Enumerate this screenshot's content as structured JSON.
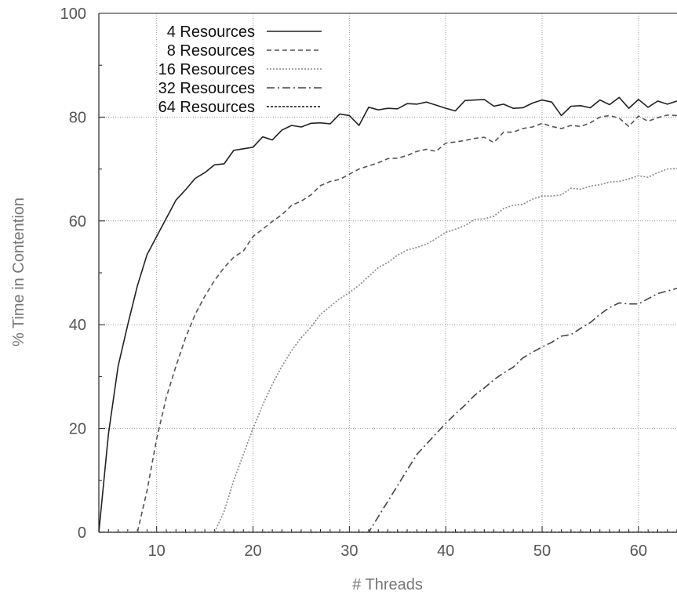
{
  "chart_data": {
    "type": "line",
    "title": "",
    "xlabel": "# Threads",
    "ylabel": "% Time in Contention",
    "xlim": [
      4,
      64
    ],
    "ylim": [
      0,
      100
    ],
    "xticks": [
      10,
      20,
      30,
      40,
      50,
      60
    ],
    "yticks": [
      0,
      20,
      40,
      60,
      80,
      100
    ],
    "grid": true,
    "legend_position": "top-left",
    "x": [
      4,
      5,
      6,
      7,
      8,
      9,
      10,
      11,
      12,
      13,
      14,
      15,
      16,
      17,
      18,
      19,
      20,
      21,
      22,
      23,
      24,
      25,
      26,
      27,
      28,
      29,
      30,
      31,
      32,
      33,
      34,
      35,
      36,
      37,
      38,
      39,
      40,
      41,
      42,
      43,
      44,
      45,
      46,
      47,
      48,
      49,
      50,
      51,
      52,
      53,
      54,
      55,
      56,
      57,
      58,
      59,
      60,
      61,
      62,
      63,
      64
    ],
    "series": [
      {
        "name": "4 Resources",
        "values": [
          0,
          19,
          32,
          40,
          47.5,
          53.5,
          57,
          60.5,
          64,
          66,
          68.2,
          69.3,
          70.8,
          71,
          73.6,
          73.9,
          74.2,
          76.2,
          75.6,
          77.5,
          78.4,
          78.1,
          78.8,
          78.9,
          78.7,
          80.6,
          80.3,
          78.4,
          81.9,
          81.4,
          81.7,
          81.6,
          82.6,
          82.5,
          82.9,
          82.3,
          81.7,
          81.2,
          83.2,
          83.3,
          83.4,
          82.1,
          82.5,
          81.7,
          81.8,
          82.7,
          83.3,
          82.9,
          80.3,
          82.1,
          82.2,
          81.8,
          83.3,
          82.4,
          83.8,
          81.7,
          83.4,
          81.9,
          83.1,
          82.5,
          83.1
        ],
        "dash": "",
        "color": "#222222"
      },
      {
        "name": "8 Resources",
        "values": [
          0,
          0,
          0,
          0,
          0,
          8,
          18,
          26,
          32,
          37.5,
          42,
          45.5,
          48.5,
          51,
          53,
          54.2,
          57,
          58.4,
          59.9,
          61.2,
          63,
          63.8,
          65,
          66.8,
          67.6,
          68,
          69,
          70,
          70.6,
          71.2,
          72,
          72.1,
          72.6,
          73.4,
          73.8,
          73.4,
          75,
          75.2,
          75.5,
          75.9,
          76.1,
          75.1,
          77.1,
          77.1,
          77.8,
          78.1,
          78.8,
          78.2,
          77.8,
          78.4,
          78.2,
          78.9,
          80,
          80.3,
          79.8,
          78.2,
          80.2,
          79.2,
          79.9,
          80.4,
          80.3
        ],
        "dash": "6,4",
        "color": "#555555"
      },
      {
        "name": "16 Resources",
        "values": [
          0,
          0,
          0,
          0,
          0,
          0,
          0,
          0,
          0,
          0,
          0,
          0,
          0,
          4,
          10,
          15,
          20,
          24.5,
          28.5,
          32,
          35,
          37.5,
          39.5,
          42,
          43.5,
          45,
          46.2,
          47.6,
          49.3,
          51,
          52,
          53.4,
          54.4,
          54.9,
          55.5,
          56.6,
          57.8,
          58.4,
          59.1,
          60.3,
          60.4,
          60.9,
          62.4,
          63,
          63.2,
          64.2,
          64.8,
          64.8,
          65,
          66.3,
          66.1,
          66.7,
          67,
          67.5,
          67.6,
          68.1,
          68.7,
          68.4,
          69.3,
          70,
          70.1
        ],
        "dash": "2,2",
        "color": "#888888"
      },
      {
        "name": "32 Resources",
        "values": [
          0,
          0,
          0,
          0,
          0,
          0,
          0,
          0,
          0,
          0,
          0,
          0,
          0,
          0,
          0,
          0,
          0,
          0,
          0,
          0,
          0,
          0,
          0,
          0,
          0,
          0,
          0,
          0,
          0,
          3,
          6,
          9,
          12,
          15,
          17,
          19,
          21,
          22.8,
          24.5,
          26.4,
          27.8,
          29.4,
          30.7,
          31.8,
          33.6,
          34.7,
          35.7,
          36.6,
          37.8,
          38.1,
          39.3,
          40.4,
          42,
          43.3,
          44.2,
          44,
          44,
          45,
          46,
          46.5,
          47
        ],
        "dash": "10,4,2,4",
        "color": "#444444"
      },
      {
        "name": "64 Resources",
        "values": [
          0,
          0,
          0,
          0,
          0,
          0,
          0,
          0,
          0,
          0,
          0,
          0,
          0,
          0,
          0,
          0,
          0,
          0,
          0,
          0,
          0,
          0,
          0,
          0,
          0,
          0,
          0,
          0,
          0,
          0,
          0,
          0,
          0,
          0,
          0,
          0,
          0,
          0,
          0,
          0,
          0,
          0,
          0,
          0,
          0,
          0,
          0,
          0,
          0,
          0,
          0,
          0,
          0,
          0,
          0,
          0,
          0,
          0,
          0,
          0,
          0
        ],
        "dash": "3,2",
        "color": "#111111"
      }
    ]
  }
}
